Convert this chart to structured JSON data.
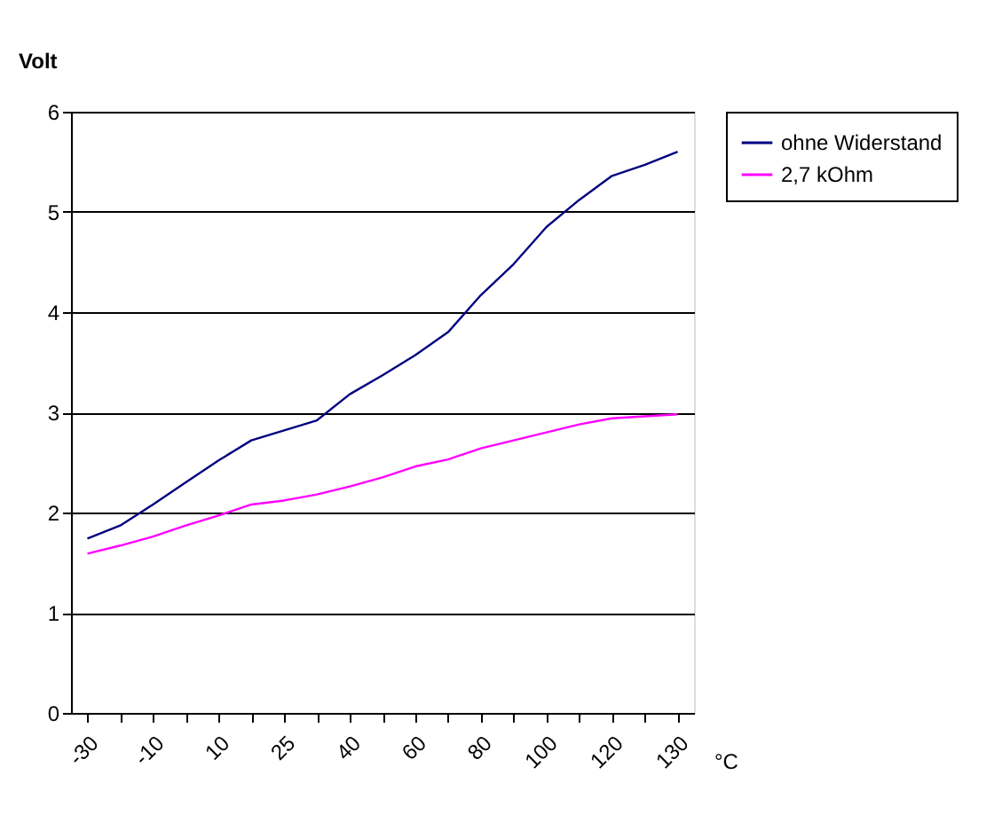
{
  "chart_data": {
    "type": "line",
    "ylabel": "Volt",
    "xlabel": "°C",
    "categories": [
      "-30",
      null,
      "-10",
      null,
      "10",
      null,
      "25",
      null,
      "40",
      null,
      "60",
      null,
      "80",
      null,
      "100",
      null,
      "120",
      null,
      "130"
    ],
    "series": [
      {
        "name": "ohne Widerstand",
        "color": "#000080",
        "values": [
          1.74,
          1.87,
          2.08,
          2.3,
          2.52,
          2.72,
          2.82,
          2.92,
          3.18,
          3.37,
          3.57,
          3.8,
          4.17,
          4.48,
          4.85,
          5.12,
          5.36,
          5.47,
          5.6
        ]
      },
      {
        "name": "2,7 kOhm",
        "color": "#ff00ff",
        "values": [
          1.59,
          1.67,
          1.76,
          1.87,
          1.97,
          2.08,
          2.12,
          2.18,
          2.26,
          2.35,
          2.46,
          2.53,
          2.64,
          2.72,
          2.8,
          2.88,
          2.94,
          2.96,
          2.98
        ]
      }
    ],
    "ylim": [
      0,
      6
    ],
    "yticks": [
      0,
      1,
      2,
      3,
      4,
      5,
      6
    ],
    "grid": "y",
    "legend": "right",
    "marker": "none",
    "line_style": "solid"
  }
}
